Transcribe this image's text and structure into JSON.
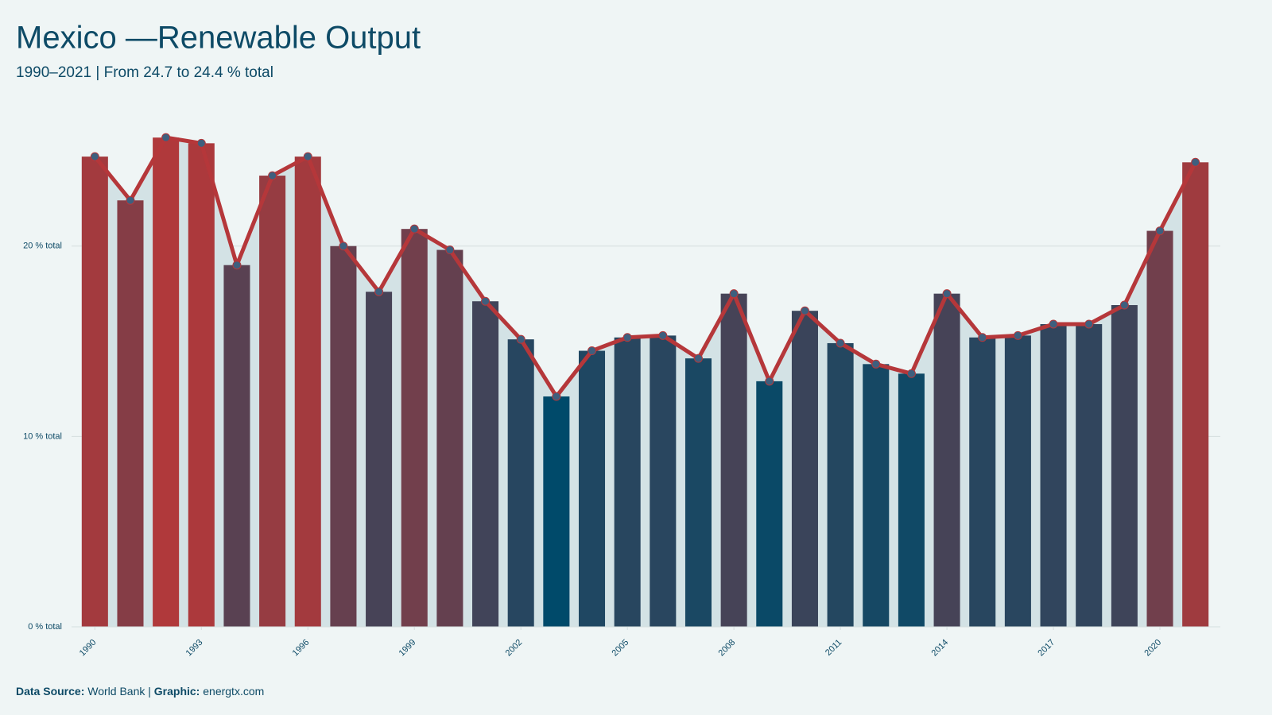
{
  "chart_data": {
    "type": "bar-line",
    "title": "Mexico —Renewable Output",
    "subtitle": "1990–2021 | From 24.7 to 24.4 % total",
    "x": [
      1990,
      1991,
      1992,
      1993,
      1994,
      1995,
      1996,
      1997,
      1998,
      1999,
      2000,
      2001,
      2002,
      2003,
      2004,
      2005,
      2006,
      2007,
      2008,
      2009,
      2010,
      2011,
      2012,
      2013,
      2014,
      2015,
      2016,
      2017,
      2018,
      2019,
      2020,
      2021
    ],
    "values": [
      24.7,
      22.4,
      25.7,
      25.4,
      19.0,
      23.7,
      24.7,
      20.0,
      17.6,
      20.9,
      19.8,
      17.1,
      15.1,
      12.1,
      14.5,
      15.2,
      15.3,
      14.1,
      17.5,
      12.9,
      16.6,
      14.9,
      13.8,
      13.3,
      17.5,
      15.2,
      15.3,
      15.9,
      15.9,
      16.9,
      20.8,
      24.4
    ],
    "xlim": [
      1989.5,
      2021.5
    ],
    "xticks": [
      1990,
      1993,
      1996,
      1999,
      2002,
      2005,
      2008,
      2011,
      2014,
      2017,
      2020
    ],
    "ylim": [
      0,
      27
    ],
    "yticks": [
      {
        "value": 0,
        "label": "0 % total"
      },
      {
        "value": 10,
        "label": "10 % total"
      },
      {
        "value": 20,
        "label": "20 % total"
      }
    ],
    "grid": true,
    "bar_color_low": "#004a6a",
    "bar_color_high": "#b0393b",
    "line_color": "#b5373a",
    "marker_color": "#3e5f7e",
    "area_color": "#d3e2e5",
    "footer": {
      "source_label": "Data Source:",
      "source": "World Bank",
      "separator": "|",
      "graphic_label": "Graphic:",
      "graphic": "energtx.com"
    }
  }
}
